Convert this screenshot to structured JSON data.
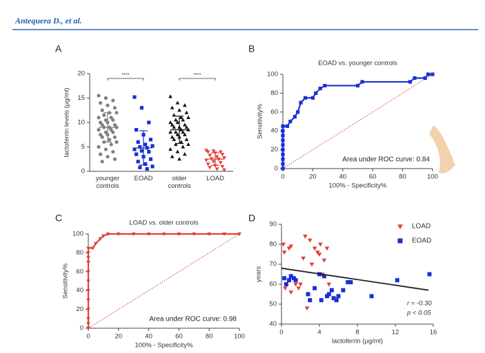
{
  "header": {
    "author": "Antequera D., et al."
  },
  "chart_data": [
    {
      "type": "strip",
      "label": "A",
      "ylabel": "lactoferrin levels (μg/ml)",
      "categories": [
        "younger controls",
        "EOAD",
        "older controls",
        "LOAD"
      ],
      "ylim": [
        0,
        20
      ],
      "yticks": [
        0,
        5,
        10,
        15,
        20
      ],
      "annotations": [
        "****",
        "****"
      ],
      "groups": [
        {
          "color": "#808080",
          "marker": "circle",
          "mean": 9,
          "sd": 3,
          "values": [
            15.5,
            15,
            14.5,
            14,
            13.5,
            13,
            12.5,
            12,
            12,
            11.5,
            11,
            11,
            10.5,
            10.5,
            10,
            10,
            9.5,
            9.5,
            9,
            9,
            9,
            8.5,
            8.5,
            8,
            8,
            7.5,
            7.5,
            7,
            7,
            6.5,
            6,
            6,
            5.5,
            5,
            4.5,
            4,
            3.5,
            3,
            2.5,
            2
          ]
        },
        {
          "color": "#1a2fd6",
          "marker": "square",
          "mean": 4.8,
          "sd": 3.5,
          "values": [
            15.2,
            13,
            10,
            8.5,
            7.5,
            6.5,
            6,
            5.5,
            5.2,
            5,
            4.8,
            4.5,
            4.2,
            4,
            3.5,
            3,
            2.5,
            2,
            1.5,
            1,
            0.8,
            0.5
          ]
        },
        {
          "color": "#111111",
          "marker": "tri-up",
          "mean": 8.5,
          "sd": 2.8,
          "values": [
            15.3,
            14,
            13.5,
            13,
            12.5,
            12,
            11.5,
            11,
            11,
            10.5,
            10.5,
            10,
            10,
            9.5,
            9.5,
            9,
            9,
            9,
            8.5,
            8.5,
            8,
            8,
            8,
            7.5,
            7.5,
            7,
            7,
            6.5,
            6.5,
            6,
            5.5,
            5.5,
            5,
            4.5,
            4,
            3.5,
            3,
            2.5
          ]
        },
        {
          "color": "#e0403a",
          "marker": "tri-down",
          "mean": 2.5,
          "sd": 1.3,
          "values": [
            4.3,
            4.2,
            4,
            4,
            3.8,
            3.5,
            3.3,
            3,
            2.8,
            2.6,
            2.5,
            2.3,
            2,
            1.8,
            1.5,
            1.2,
            1,
            0.8,
            0.5,
            0.3
          ]
        }
      ]
    },
    {
      "type": "roc",
      "label": "B",
      "title": "EOAD vs. younger controls",
      "xlabel": "100% - Specificity%",
      "ylabel": "Sensitivity%",
      "annotation": "Area under ROC curve: 0.84",
      "xlim": [
        0,
        100
      ],
      "ylim": [
        0,
        100
      ],
      "xticks": [
        0,
        20,
        40,
        60,
        80,
        100
      ],
      "yticks": [
        0,
        20,
        40,
        60,
        80,
        100
      ],
      "color": "#1a2fd6",
      "marker": "square",
      "x": [
        0,
        0,
        0,
        0,
        0,
        0,
        0,
        0,
        0,
        0,
        3,
        5,
        8,
        10,
        12,
        15,
        20,
        22,
        25,
        28,
        50,
        53,
        85,
        88,
        95,
        97,
        100
      ],
      "values": [
        0,
        5,
        10,
        15,
        20,
        25,
        30,
        35,
        40,
        45,
        45,
        50,
        55,
        60,
        70,
        75,
        75,
        80,
        85,
        88,
        88,
        92,
        92,
        96,
        96,
        100,
        100
      ]
    },
    {
      "type": "roc",
      "label": "C",
      "title": "LOAD vs. older controls",
      "xlabel": "100% - Specificity%",
      "ylabel": "Sensitivity%",
      "annotation": "Area under ROC curve: 0.98",
      "xlim": [
        0,
        100
      ],
      "ylim": [
        0,
        100
      ],
      "xticks": [
        0,
        20,
        40,
        60,
        80,
        100
      ],
      "yticks": [
        0,
        20,
        40,
        60,
        80,
        100
      ],
      "color": "#e0403a",
      "marker": "tri-down",
      "x": [
        0,
        0,
        0,
        0,
        0,
        0,
        0,
        0,
        0,
        0,
        0,
        0,
        3,
        5,
        8,
        10,
        13,
        20,
        30,
        40,
        50,
        60,
        70,
        80,
        90,
        100
      ],
      "values": [
        0,
        5,
        10,
        20,
        30,
        40,
        50,
        60,
        70,
        75,
        80,
        85,
        85,
        90,
        95,
        98,
        100,
        100,
        100,
        100,
        100,
        100,
        100,
        100,
        100,
        100
      ]
    },
    {
      "type": "scatter",
      "label": "D",
      "xlabel": "lactoferrin (μg/ml)",
      "ylabel": "years",
      "xlim": [
        0,
        16
      ],
      "ylim": [
        40,
        90
      ],
      "xticks": [
        0,
        4,
        8,
        12,
        16
      ],
      "yticks": [
        40,
        50,
        60,
        70,
        80,
        90
      ],
      "annotations": [
        "r = -0.30",
        "p < 0.05"
      ],
      "fit": {
        "color": "#222222",
        "x": [
          0,
          15.5
        ],
        "values": [
          68,
          57
        ]
      },
      "series": [
        {
          "name": "LOAD",
          "color": "#e0403a",
          "marker": "tri-down",
          "x": [
            0.2,
            0.3,
            0.4,
            0.8,
            1.0,
            1.0,
            1.5,
            2.0,
            2.3,
            2.5,
            2.7,
            3.0,
            3.2,
            3.5,
            3.8,
            4.0,
            4.1,
            4.3,
            4.5,
            4.8,
            5.0,
            1.8
          ],
          "values": [
            80,
            76,
            58,
            78,
            79,
            56,
            60,
            60,
            73,
            84,
            48,
            82,
            70,
            78,
            76,
            75,
            80,
            65,
            72,
            78,
            60,
            58
          ]
        },
        {
          "name": "EOAD",
          "color": "#1a2fd6",
          "marker": "square",
          "x": [
            0.3,
            0.5,
            0.8,
            1.0,
            1.3,
            1.5,
            2.8,
            3.0,
            3.5,
            4.0,
            4.2,
            4.5,
            4.8,
            5.0,
            5.3,
            5.5,
            5.8,
            6.0,
            6.5,
            7.0,
            7.3,
            9.5,
            12.2,
            15.6
          ],
          "values": [
            63,
            60,
            62,
            64,
            63,
            62,
            55,
            52,
            58,
            65,
            52,
            64,
            54,
            55,
            57,
            53,
            52,
            54,
            57,
            61,
            61,
            54,
            62,
            65
          ]
        }
      ]
    }
  ]
}
